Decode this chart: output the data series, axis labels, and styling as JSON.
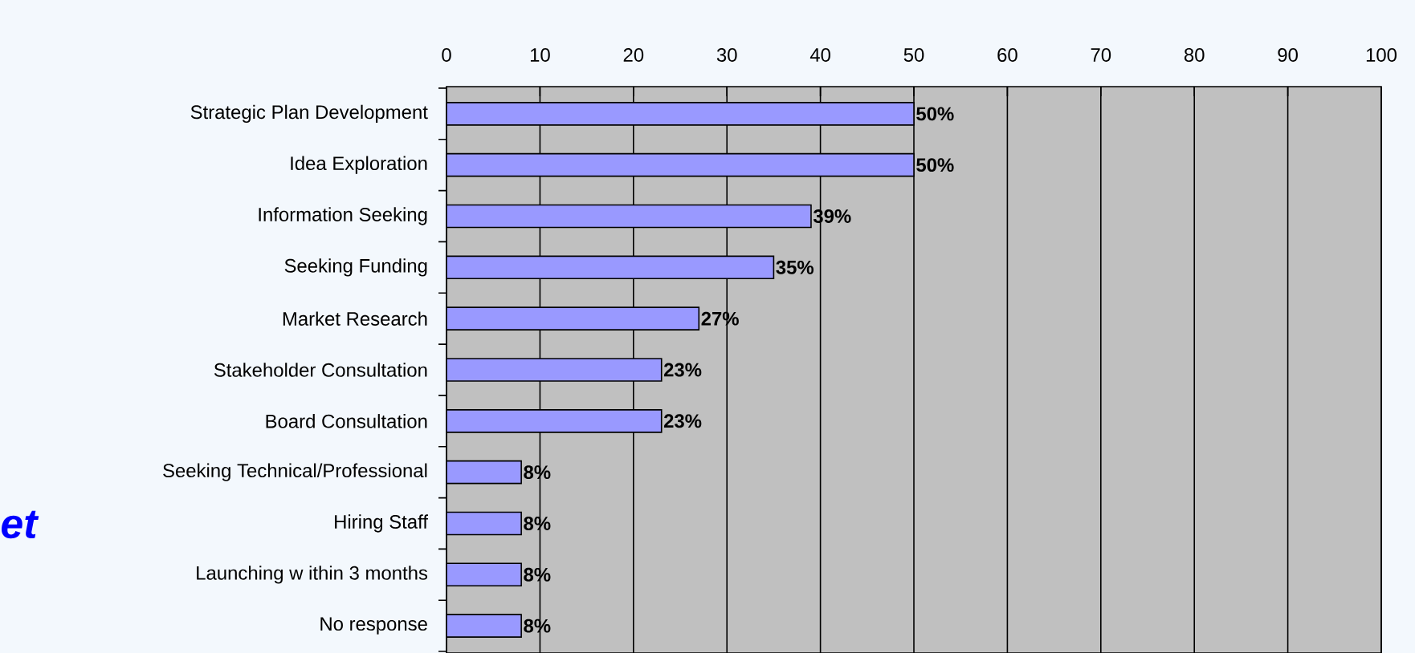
{
  "chart_data": {
    "type": "bar",
    "orientation": "horizontal",
    "categories": [
      "Strategic Plan Development",
      "Idea Exploration",
      "Information Seeking",
      "Seeking Funding",
      "Market Research",
      "Stakeholder Consultation",
      "Board Consultation",
      "Seeking Technical/Professional",
      "Hiring Staff",
      "Launching w ithin 3 months",
      "No response"
    ],
    "values": [
      50,
      50,
      39,
      35,
      27,
      23,
      23,
      8,
      8,
      8,
      8
    ],
    "value_labels": [
      "50%",
      "50%",
      "39%",
      "35%",
      "27%",
      "23%",
      "23%",
      "8%",
      "8%",
      "8%",
      "8%"
    ],
    "color": "#9999ff",
    "xlim": [
      0,
      100
    ],
    "xticks": [
      0,
      10,
      20,
      30,
      40,
      50,
      60,
      70,
      80,
      90,
      100
    ],
    "grid": "x",
    "annotations": [
      "et"
    ]
  }
}
